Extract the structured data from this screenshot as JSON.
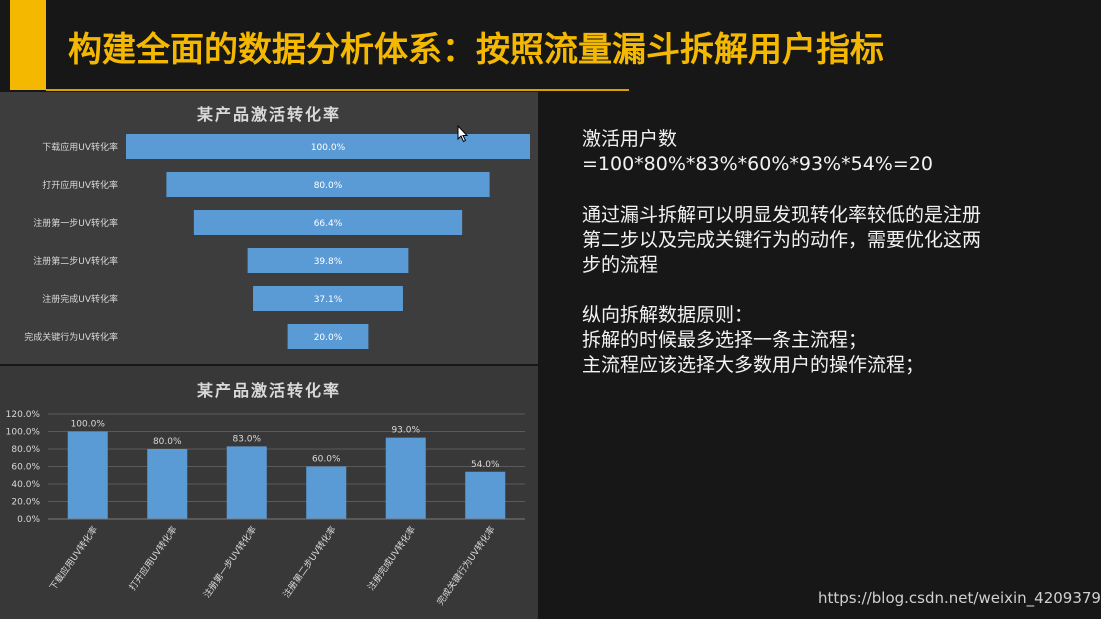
{
  "slide": {
    "title": "构建全面的数据分析体系：按照流量漏斗拆解用户指标",
    "accent_color": "#f5b800",
    "right_lines": [
      "激活用户数",
      "=100*80%*83%*60%*93%*54%=20",
      "通过漏斗拆解可以明显发现转化率较低的是注册",
      "第二步以及完成关键行为的动作，需要优化这两",
      "步的流程",
      "纵向拆解数据原则：",
      "拆解的时候最多选择一条主流程；",
      "主流程应该选择大多数用户的操作流程；"
    ],
    "watermark": "https://blog.csdn.net/weixin_42093798"
  },
  "chart_data": [
    {
      "type": "bar",
      "orientation": "horizontal-funnel",
      "title": "某产品激活转化率",
      "categories": [
        "下载应用UV转化率",
        "打开应用UV转化率",
        "注册第一步UV转化率",
        "注册第二步UV转化率",
        "注册完成UV转化率",
        "完成关键行为UV转化率"
      ],
      "values": [
        100.0,
        80.0,
        66.4,
        39.8,
        37.1,
        20.0
      ],
      "labels": [
        "100.0%",
        "80.0%",
        "66.4%",
        "39.8%",
        "37.1%",
        "20.0%"
      ],
      "bar_color": "#5b9bd5"
    },
    {
      "type": "bar",
      "title": "某产品激活转化率",
      "categories": [
        "下载应用UV转化率",
        "打开应用UV转化率",
        "注册第一步UV转化率",
        "注册第二步UV转化率",
        "注册完成UV转化率",
        "完成关键行为UV转化率"
      ],
      "values": [
        100.0,
        80.0,
        83.0,
        60.0,
        93.0,
        54.0
      ],
      "labels": [
        "100.0%",
        "80.0%",
        "83.0%",
        "60.0%",
        "93.0%",
        "54.0%"
      ],
      "ylim": [
        0,
        120
      ],
      "yticks": [
        "0.0%",
        "20.0%",
        "40.0%",
        "60.0%",
        "80.0%",
        "100.0%",
        "120.0%"
      ],
      "grid": true,
      "bar_color": "#5b9bd5"
    }
  ]
}
